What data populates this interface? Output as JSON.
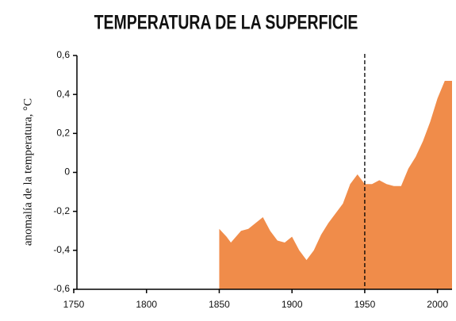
{
  "chart_data": {
    "type": "area",
    "title": "TEMPERATURA DE LA SUPERFICIE",
    "ylabel": "anomalía de la temperatura, °C",
    "x": [
      1850,
      1855,
      1858,
      1865,
      1870,
      1875,
      1880,
      1885,
      1890,
      1895,
      1900,
      1905,
      1910,
      1915,
      1920,
      1925,
      1930,
      1935,
      1940,
      1945,
      1950,
      1955,
      1960,
      1965,
      1970,
      1975,
      1980,
      1985,
      1990,
      1995,
      2000,
      2005,
      2010
    ],
    "values": [
      -0.29,
      -0.33,
      -0.36,
      -0.3,
      -0.29,
      -0.26,
      -0.23,
      -0.3,
      -0.35,
      -0.36,
      -0.33,
      -0.4,
      -0.45,
      -0.4,
      -0.32,
      -0.26,
      -0.21,
      -0.16,
      -0.06,
      -0.01,
      -0.06,
      -0.06,
      -0.04,
      -0.06,
      -0.07,
      -0.07,
      0.02,
      0.08,
      0.16,
      0.26,
      0.38,
      0.47,
      0.47
    ],
    "color": "#f08c4a",
    "xlim": [
      1750,
      2010
    ],
    "xticks": [
      1750,
      1800,
      1850,
      1900,
      1950,
      2000
    ],
    "ylim": [
      -0.6,
      0.6
    ],
    "yticks": [
      {
        "value": -0.6,
        "label": "-0,6"
      },
      {
        "value": -0.4,
        "label": "-0,4"
      },
      {
        "value": -0.2,
        "label": "-0,2"
      },
      0,
      {
        "value": 0.2,
        "label": "0,2"
      },
      {
        "value": 0.4,
        "label": "0,4"
      },
      {
        "value": 0.6,
        "label": "0,6"
      }
    ],
    "vline": 1950
  }
}
